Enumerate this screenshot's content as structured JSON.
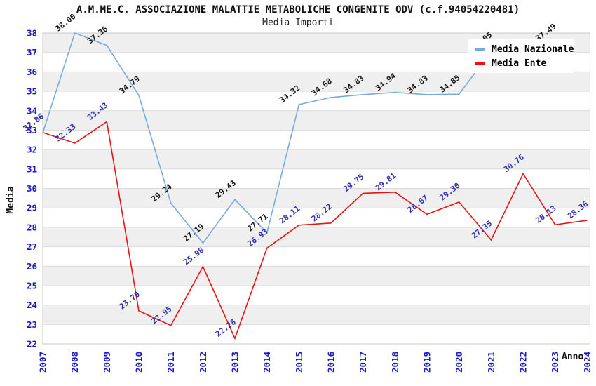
{
  "title": "A.M.ME.C. ASSOCIAZIONE MALATTIE METABOLICHE CONGENITE ODV (c.f.94054220481)",
  "subtitle": "Media Importi",
  "legend": [
    {
      "label": "Media Nazionale",
      "color": "#79aade"
    },
    {
      "label": "Media Ente",
      "color": "#ee1111"
    }
  ],
  "axes": {
    "y_title": "Media",
    "x_title": "Anno",
    "y_ticks": [
      22,
      23,
      24,
      25,
      26,
      27,
      28,
      29,
      30,
      31,
      32,
      33,
      34,
      35,
      36,
      37,
      38
    ],
    "x_ticks": [
      "2007",
      "2008",
      "2009",
      "2010",
      "2011",
      "2012",
      "2013",
      "2014",
      "2015",
      "2016",
      "2017",
      "2018",
      "2019",
      "2020",
      "2021",
      "2022",
      "2023",
      "2024"
    ],
    "tick_color": "#1717cd"
  },
  "chart_data": {
    "type": "line",
    "x": [
      "2007",
      "2008",
      "2009",
      "2010",
      "2011",
      "2012",
      "2013",
      "2014",
      "2015",
      "2016",
      "2017",
      "2018",
      "2019",
      "2020",
      "2021",
      "2022",
      "2023",
      "2024"
    ],
    "series": [
      {
        "name": "Media Nazionale",
        "color": "#79aade",
        "label_color": "#141414",
        "values": [
          32.86,
          38.0,
          37.36,
          34.79,
          29.24,
          27.19,
          29.43,
          27.71,
          34.32,
          34.68,
          34.83,
          34.94,
          34.83,
          34.85,
          37.05,
          null,
          37.49,
          null
        ],
        "labels": [
          "32.86",
          "38.00",
          "37.36",
          "34.79",
          "29.24",
          "27.19",
          "29.43",
          "27.71",
          "34.32",
          "34.68",
          "34.83",
          "34.94",
          "34.83",
          "34.85",
          "37.05",
          null,
          "37.49",
          null
        ]
      },
      {
        "name": "Media Ente",
        "color": "#ee1111",
        "label_color": "#3030b0",
        "values": [
          32.88,
          32.33,
          33.43,
          23.7,
          22.95,
          25.98,
          22.28,
          26.93,
          28.11,
          28.22,
          29.75,
          29.81,
          28.67,
          29.3,
          27.35,
          30.76,
          28.13,
          28.36
        ],
        "labels": [
          "32.88",
          "32.33",
          "33.43",
          "23.70",
          "22.95",
          "25.98",
          "22.28",
          "26.93",
          "28.11",
          "28.22",
          "29.75",
          "29.81",
          "28.67",
          "29.30",
          "27.35",
          "30.76",
          "28.13",
          "28.36"
        ]
      }
    ],
    "ylim": [
      22,
      38
    ],
    "band_color": "#efefef",
    "grid_color": "#dcdcdc",
    "border_color": "#c9c9c9",
    "legend_position": "top-right",
    "grid": "horizontal-bands"
  }
}
